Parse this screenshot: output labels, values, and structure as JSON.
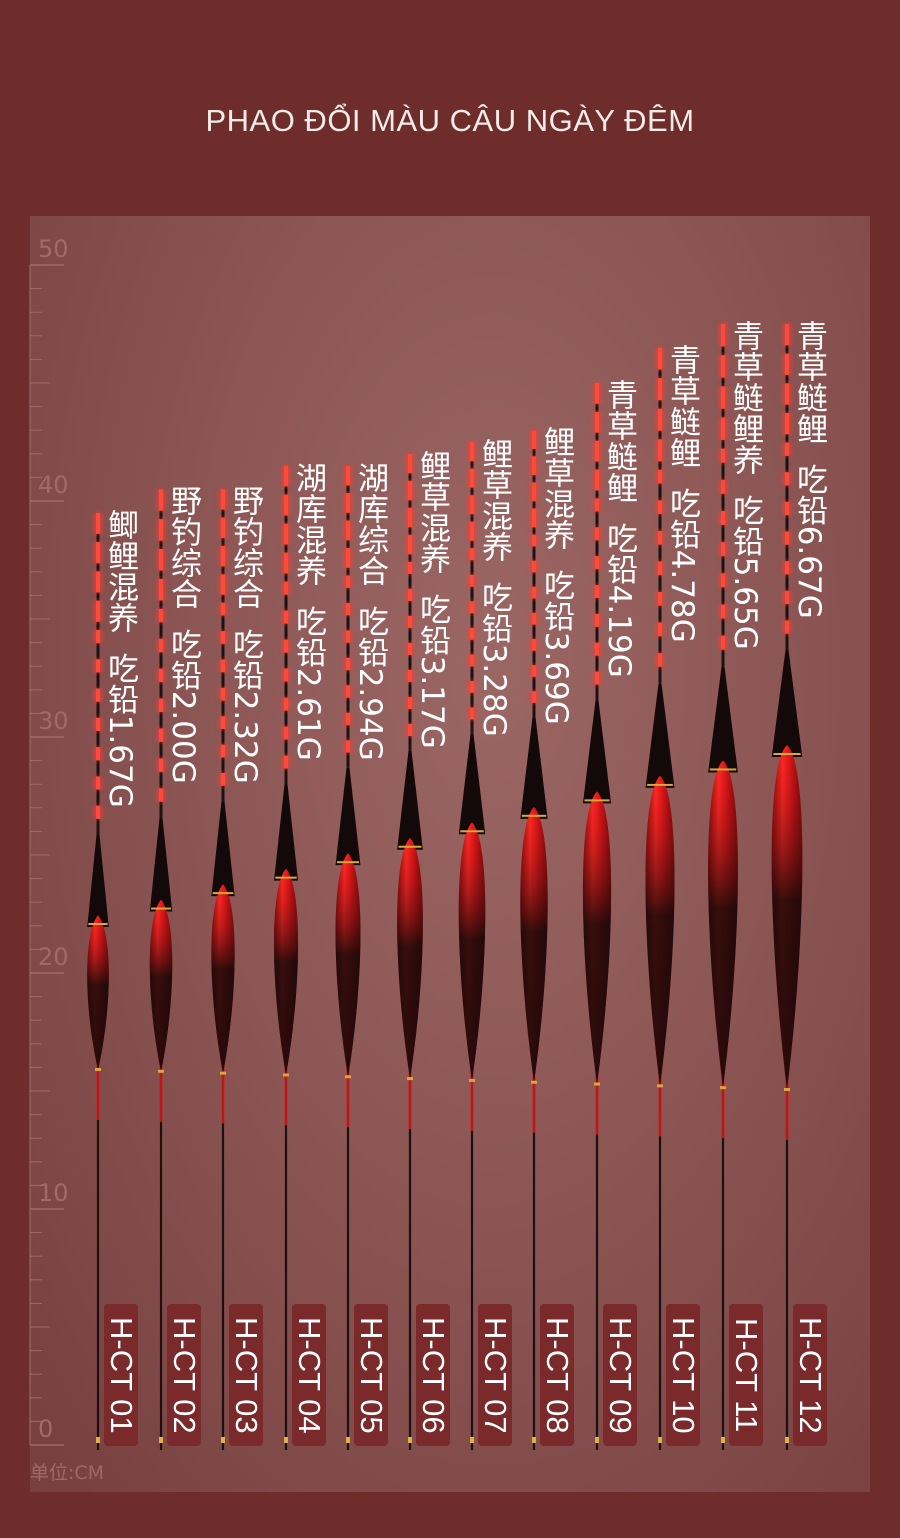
{
  "title": "PHAO ĐỔI MÀU CÂU NGÀY ĐÊM",
  "ruler": {
    "labels": [
      "50",
      "40",
      "30",
      "20",
      "10",
      "0"
    ],
    "unit": "单位:CM"
  },
  "floats": [
    {
      "model": "H-CT 01",
      "fish": "鲫鲤混养",
      "lead": "吃铅1.67G",
      "length_cm": 39.5
    },
    {
      "model": "H-CT 02",
      "fish": "野钓综合",
      "lead": "吃铅2.00G",
      "length_cm": 40.5
    },
    {
      "model": "H-CT 03",
      "fish": "野钓综合",
      "lead": "吃铅2.32G",
      "length_cm": 40.5
    },
    {
      "model": "H-CT 04",
      "fish": "湖库混养",
      "lead": "吃铅2.61G",
      "length_cm": 41.5
    },
    {
      "model": "H-CT 05",
      "fish": "湖库综合",
      "lead": "吃铅2.94G",
      "length_cm": 41.5
    },
    {
      "model": "H-CT 06",
      "fish": "鲤草混养",
      "lead": "吃铅3.17G",
      "length_cm": 42
    },
    {
      "model": "H-CT 07",
      "fish": "鲤草混养",
      "lead": "吃铅3.28G",
      "length_cm": 42.5
    },
    {
      "model": "H-CT 08",
      "fish": "鲤草混养",
      "lead": "吃铅3.69G",
      "length_cm": 43
    },
    {
      "model": "H-CT 09",
      "fish": "青草鲢鲤",
      "lead": "吃铅4.19G",
      "length_cm": 45
    },
    {
      "model": "H-CT 10",
      "fish": "青草鲢鲤",
      "lead": "吃铅4.78G",
      "length_cm": 46.5
    },
    {
      "model": "H-CT 11",
      "fish": "青草鲢鲤养",
      "lead": "吃铅5.65G",
      "length_cm": 47.5
    },
    {
      "model": "H-CT 12",
      "fish": "青草鲢鲤",
      "lead": "吃铅6.67G",
      "length_cm": 47.5
    }
  ],
  "colors": {
    "background": "#6e2c2a",
    "panel": "#8d5856",
    "float_body": "#d9171b",
    "float_dark": "#1a0d0c",
    "label_bg": "#7a2a2a",
    "text": "#ffffff"
  }
}
